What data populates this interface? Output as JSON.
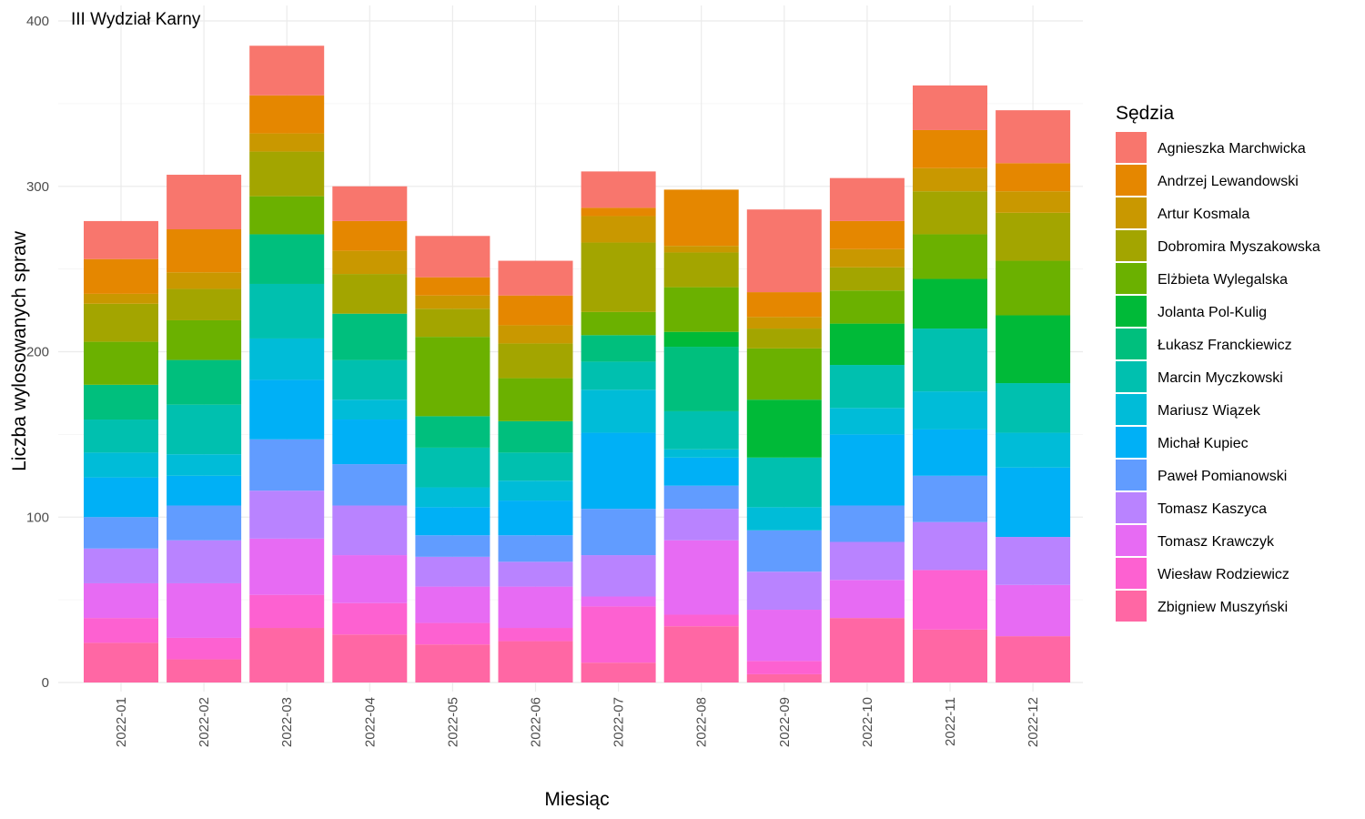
{
  "chart_data": {
    "type": "bar",
    "stacked": true,
    "title": "III Wydział Karny",
    "xlabel": "Miesiąc",
    "ylabel": "Liczba wylosowanych spraw",
    "ylim": [
      0,
      400
    ],
    "yticks": [
      0,
      100,
      200,
      300,
      400
    ],
    "grid": true,
    "legend_title": "Sędzia",
    "legend_position": "right",
    "categories": [
      "2022-01",
      "2022-02",
      "2022-03",
      "2022-04",
      "2022-05",
      "2022-06",
      "2022-07",
      "2022-08",
      "2022-09",
      "2022-10",
      "2022-11",
      "2022-12"
    ],
    "series": [
      {
        "name": "Agnieszka Marchwicka",
        "color": "#F8766D",
        "values": [
          23,
          33,
          30,
          21,
          25,
          21,
          22,
          0,
          50,
          26,
          27,
          32
        ]
      },
      {
        "name": "Andrzej Lewandowski",
        "color": "#E58700",
        "values": [
          21,
          26,
          23,
          18,
          11,
          18,
          5,
          34,
          15,
          17,
          23,
          17
        ]
      },
      {
        "name": "Artur Kosmala",
        "color": "#C99800",
        "values": [
          6,
          10,
          11,
          14,
          8,
          11,
          16,
          4,
          7,
          11,
          14,
          13
        ]
      },
      {
        "name": "Dobromira Myszakowska",
        "color": "#A3A500",
        "values": [
          23,
          19,
          27,
          24,
          17,
          21,
          42,
          21,
          12,
          14,
          26,
          29
        ]
      },
      {
        "name": "Elżbieta Wylegalska",
        "color": "#6BB100",
        "values": [
          26,
          24,
          23,
          0,
          48,
          26,
          14,
          27,
          31,
          20,
          27,
          33
        ]
      },
      {
        "name": "Jolanta Pol-Kulig",
        "color": "#00BA38",
        "values": [
          0,
          0,
          0,
          0,
          0,
          0,
          0,
          9,
          35,
          25,
          30,
          41
        ]
      },
      {
        "name": "Łukasz Franckiewicz",
        "color": "#00BF7D",
        "values": [
          21,
          27,
          30,
          28,
          19,
          19,
          16,
          39,
          0,
          0,
          0,
          0
        ]
      },
      {
        "name": "Marcin Myczkowski",
        "color": "#00C0AF",
        "values": [
          20,
          30,
          33,
          24,
          24,
          17,
          17,
          23,
          30,
          26,
          38,
          30
        ]
      },
      {
        "name": "Mariusz Wiązek",
        "color": "#00BCD8",
        "values": [
          15,
          13,
          25,
          12,
          12,
          12,
          26,
          5,
          14,
          16,
          23,
          21
        ]
      },
      {
        "name": "Michał Kupiec",
        "color": "#00B0F6",
        "values": [
          24,
          18,
          36,
          27,
          17,
          21,
          46,
          17,
          0,
          43,
          28,
          42
        ]
      },
      {
        "name": "Paweł Pomianowski",
        "color": "#619CFF",
        "values": [
          19,
          21,
          31,
          25,
          13,
          16,
          28,
          14,
          25,
          22,
          28,
          0
        ]
      },
      {
        "name": "Tomasz Kaszyca",
        "color": "#B983FF",
        "values": [
          21,
          26,
          29,
          30,
          18,
          15,
          25,
          19,
          23,
          23,
          29,
          29
        ]
      },
      {
        "name": "Tomasz Krawczyk",
        "color": "#E76BF3",
        "values": [
          21,
          33,
          34,
          29,
          22,
          25,
          6,
          45,
          31,
          23,
          0,
          31
        ]
      },
      {
        "name": "Wiesław Rodziewicz",
        "color": "#FD61D1",
        "values": [
          15,
          13,
          20,
          19,
          13,
          8,
          34,
          7,
          8,
          0,
          36,
          0
        ]
      },
      {
        "name": "Zbigniew Muszyński",
        "color": "#FF67A4",
        "values": [
          24,
          14,
          33,
          29,
          23,
          25,
          12,
          34,
          5,
          39,
          32,
          28
        ]
      }
    ]
  }
}
